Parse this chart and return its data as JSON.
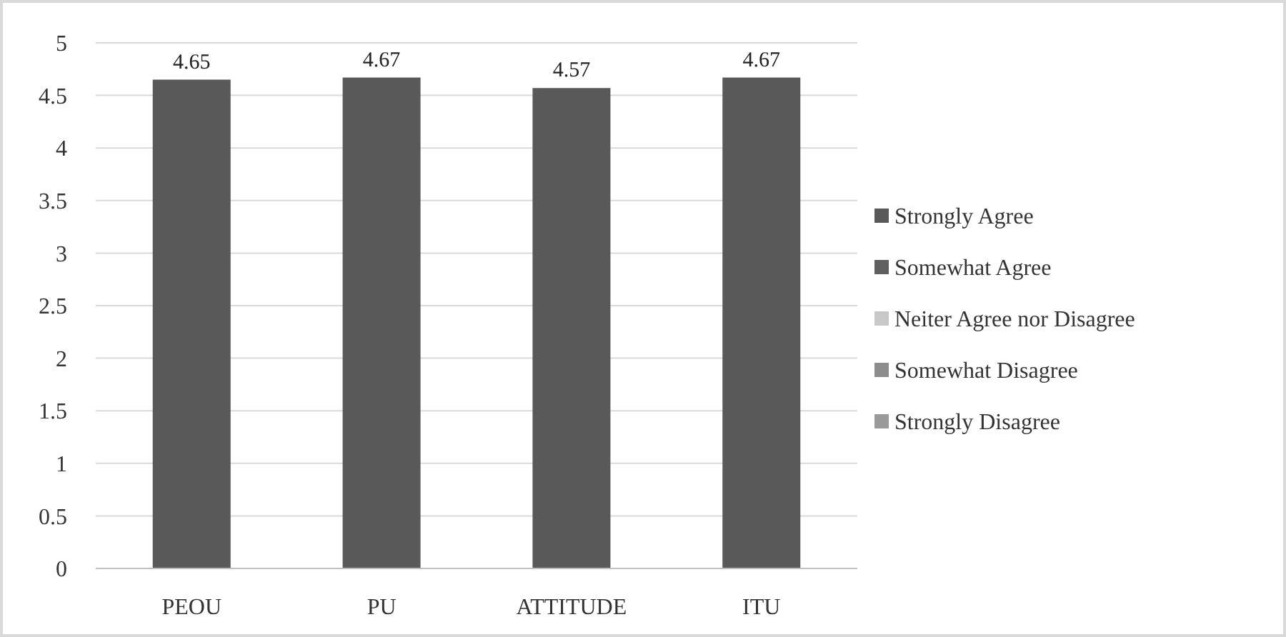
{
  "chart_data": {
    "type": "bar",
    "categories": [
      "PEOU",
      "PU",
      "ATTITUDE",
      "ITU"
    ],
    "series": [
      {
        "name": "Strongly Agree",
        "color": "#595959",
        "values": [
          4.65,
          4.67,
          4.57,
          4.67
        ]
      },
      {
        "name": "Somewhat Agree",
        "color": "#5f5f5f",
        "values": [
          null,
          null,
          null,
          null
        ]
      },
      {
        "name": "Neiter Agree nor Disagree",
        "color": "#c8c8c8",
        "values": [
          null,
          null,
          null,
          null
        ]
      },
      {
        "name": "Somewhat Disagree",
        "color": "#8c8c8c",
        "values": [
          null,
          null,
          null,
          null
        ]
      },
      {
        "name": "Strongly Disagree",
        "color": "#9a9a9a",
        "values": [
          null,
          null,
          null,
          null
        ]
      }
    ],
    "ylim": [
      0,
      5
    ],
    "yticks": [
      0,
      0.5,
      1,
      1.5,
      2,
      2.5,
      3,
      3.5,
      4,
      4.5,
      5
    ],
    "grid": "y",
    "legend": "right",
    "data_labels": true
  }
}
